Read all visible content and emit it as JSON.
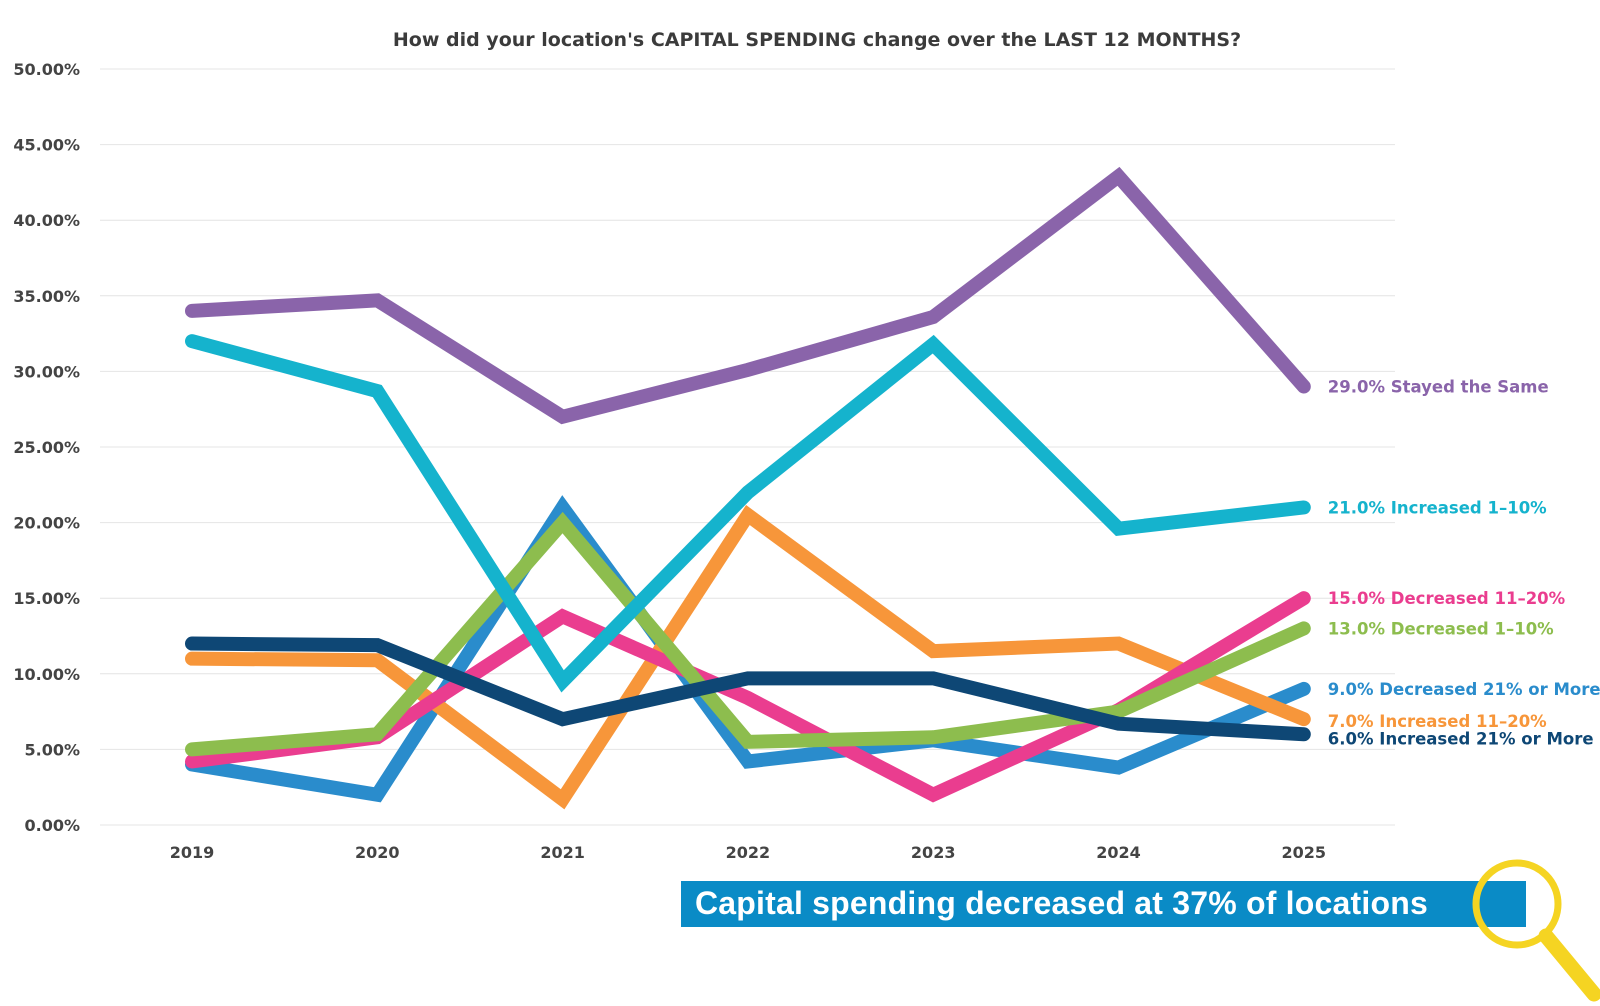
{
  "chart_data": {
    "type": "line",
    "title": "How did your location's CAPITAL SPENDING change over the LAST 12 MONTHS?",
    "xlabel": "",
    "ylabel": "",
    "ylim": [
      0,
      50
    ],
    "yticks": [
      "0.00%",
      "5.00%",
      "10.00%",
      "15.00%",
      "20.00%",
      "25.00%",
      "30.00%",
      "35.00%",
      "40.00%",
      "45.00%",
      "50.00%"
    ],
    "grid": true,
    "x": [
      "2019",
      "2020",
      "2021",
      "2022",
      "2023",
      "2024",
      "2025"
    ],
    "series": [
      {
        "name": "Decreased 21% or More",
        "label": "9.0% Decreased 21% or More",
        "color": "#2a8ccc",
        "values": [
          4.0,
          2.0,
          21.0,
          4.2,
          5.6,
          3.8,
          9.0
        ]
      },
      {
        "name": "Increased 11–20%",
        "label": "7.0% Increased 11–20%",
        "color": "#f7963a",
        "values": [
          11.0,
          10.9,
          1.7,
          20.5,
          11.5,
          12.0,
          7.0
        ]
      },
      {
        "name": "Decreased 11–20%",
        "label": "15.0% Decreased 11–20%",
        "color": "#ea3d8f",
        "values": [
          4.2,
          5.8,
          13.8,
          8.4,
          2.0,
          7.6,
          15.0
        ]
      },
      {
        "name": "Decreased 1–10%",
        "label": "13.0% Decreased 1–10%",
        "color": "#8dbd4e",
        "values": [
          5.0,
          6.0,
          20.0,
          5.5,
          5.8,
          7.5,
          13.0
        ]
      },
      {
        "name": "Increased 21% or More",
        "label": "6.0% Increased 21% or More",
        "color": "#0e4775",
        "values": [
          12.0,
          11.9,
          7.0,
          9.7,
          9.7,
          6.7,
          6.0
        ]
      },
      {
        "name": "Increased 1–10%",
        "label": "21.0% Increased 1–10%",
        "color": "#15b3cd",
        "values": [
          32.0,
          28.7,
          9.5,
          22.0,
          31.8,
          19.6,
          21.0
        ]
      },
      {
        "name": "Stayed the Same",
        "label": "29.0% Stayed the Same",
        "color": "#8a64aa",
        "values": [
          34.0,
          34.7,
          27.0,
          30.1,
          33.6,
          42.9,
          29.0
        ]
      }
    ],
    "annotation": "Capital spending decreased at 37% of locations"
  },
  "colors": {
    "banner": "#0a8bc6",
    "magnifier": "#f5d422",
    "grid": "#e4e4e4"
  },
  "icons": {
    "magnifier": "magnifier-icon"
  }
}
